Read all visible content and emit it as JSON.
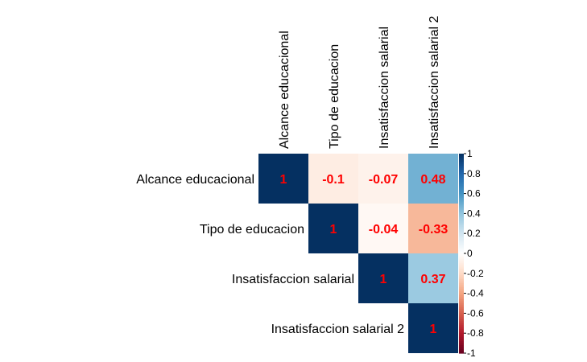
{
  "chart_data": {
    "type": "heatmap",
    "variables": [
      "Alcance educacional",
      "Tipo de educacion",
      "Insatisfaccion salarial",
      "Insatisfaccion salarial 2"
    ],
    "layout": "upper-triangle",
    "cells": [
      {
        "row": 0,
        "col": 0,
        "value": 1,
        "label": "1"
      },
      {
        "row": 0,
        "col": 1,
        "value": -0.1,
        "label": "-0.1"
      },
      {
        "row": 0,
        "col": 2,
        "value": -0.07,
        "label": "-0.07"
      },
      {
        "row": 0,
        "col": 3,
        "value": 0.48,
        "label": "0.48"
      },
      {
        "row": 1,
        "col": 1,
        "value": 1,
        "label": "1"
      },
      {
        "row": 1,
        "col": 2,
        "value": -0.04,
        "label": "-0.04"
      },
      {
        "row": 1,
        "col": 3,
        "value": -0.33,
        "label": "-0.33"
      },
      {
        "row": 2,
        "col": 2,
        "value": 1,
        "label": "1"
      },
      {
        "row": 2,
        "col": 3,
        "value": 0.37,
        "label": "0.37"
      },
      {
        "row": 3,
        "col": 3,
        "value": 1,
        "label": "1"
      }
    ],
    "colorbar": {
      "range": [
        -1,
        1
      ],
      "ticks": [
        "1",
        "0.8",
        "0.6",
        "0.4",
        "0.2",
        "0",
        "-0.2",
        "-0.4",
        "-0.6",
        "-0.8",
        "-1"
      ],
      "placement": "right"
    },
    "value_label_color": "#ff0000",
    "palette": [
      "#67001f",
      "#b2182b",
      "#d6604d",
      "#f4a582",
      "#fddbc7",
      "#ffffff",
      "#d1e5f0",
      "#92c5de",
      "#4393c3",
      "#2166ac",
      "#053061"
    ]
  }
}
